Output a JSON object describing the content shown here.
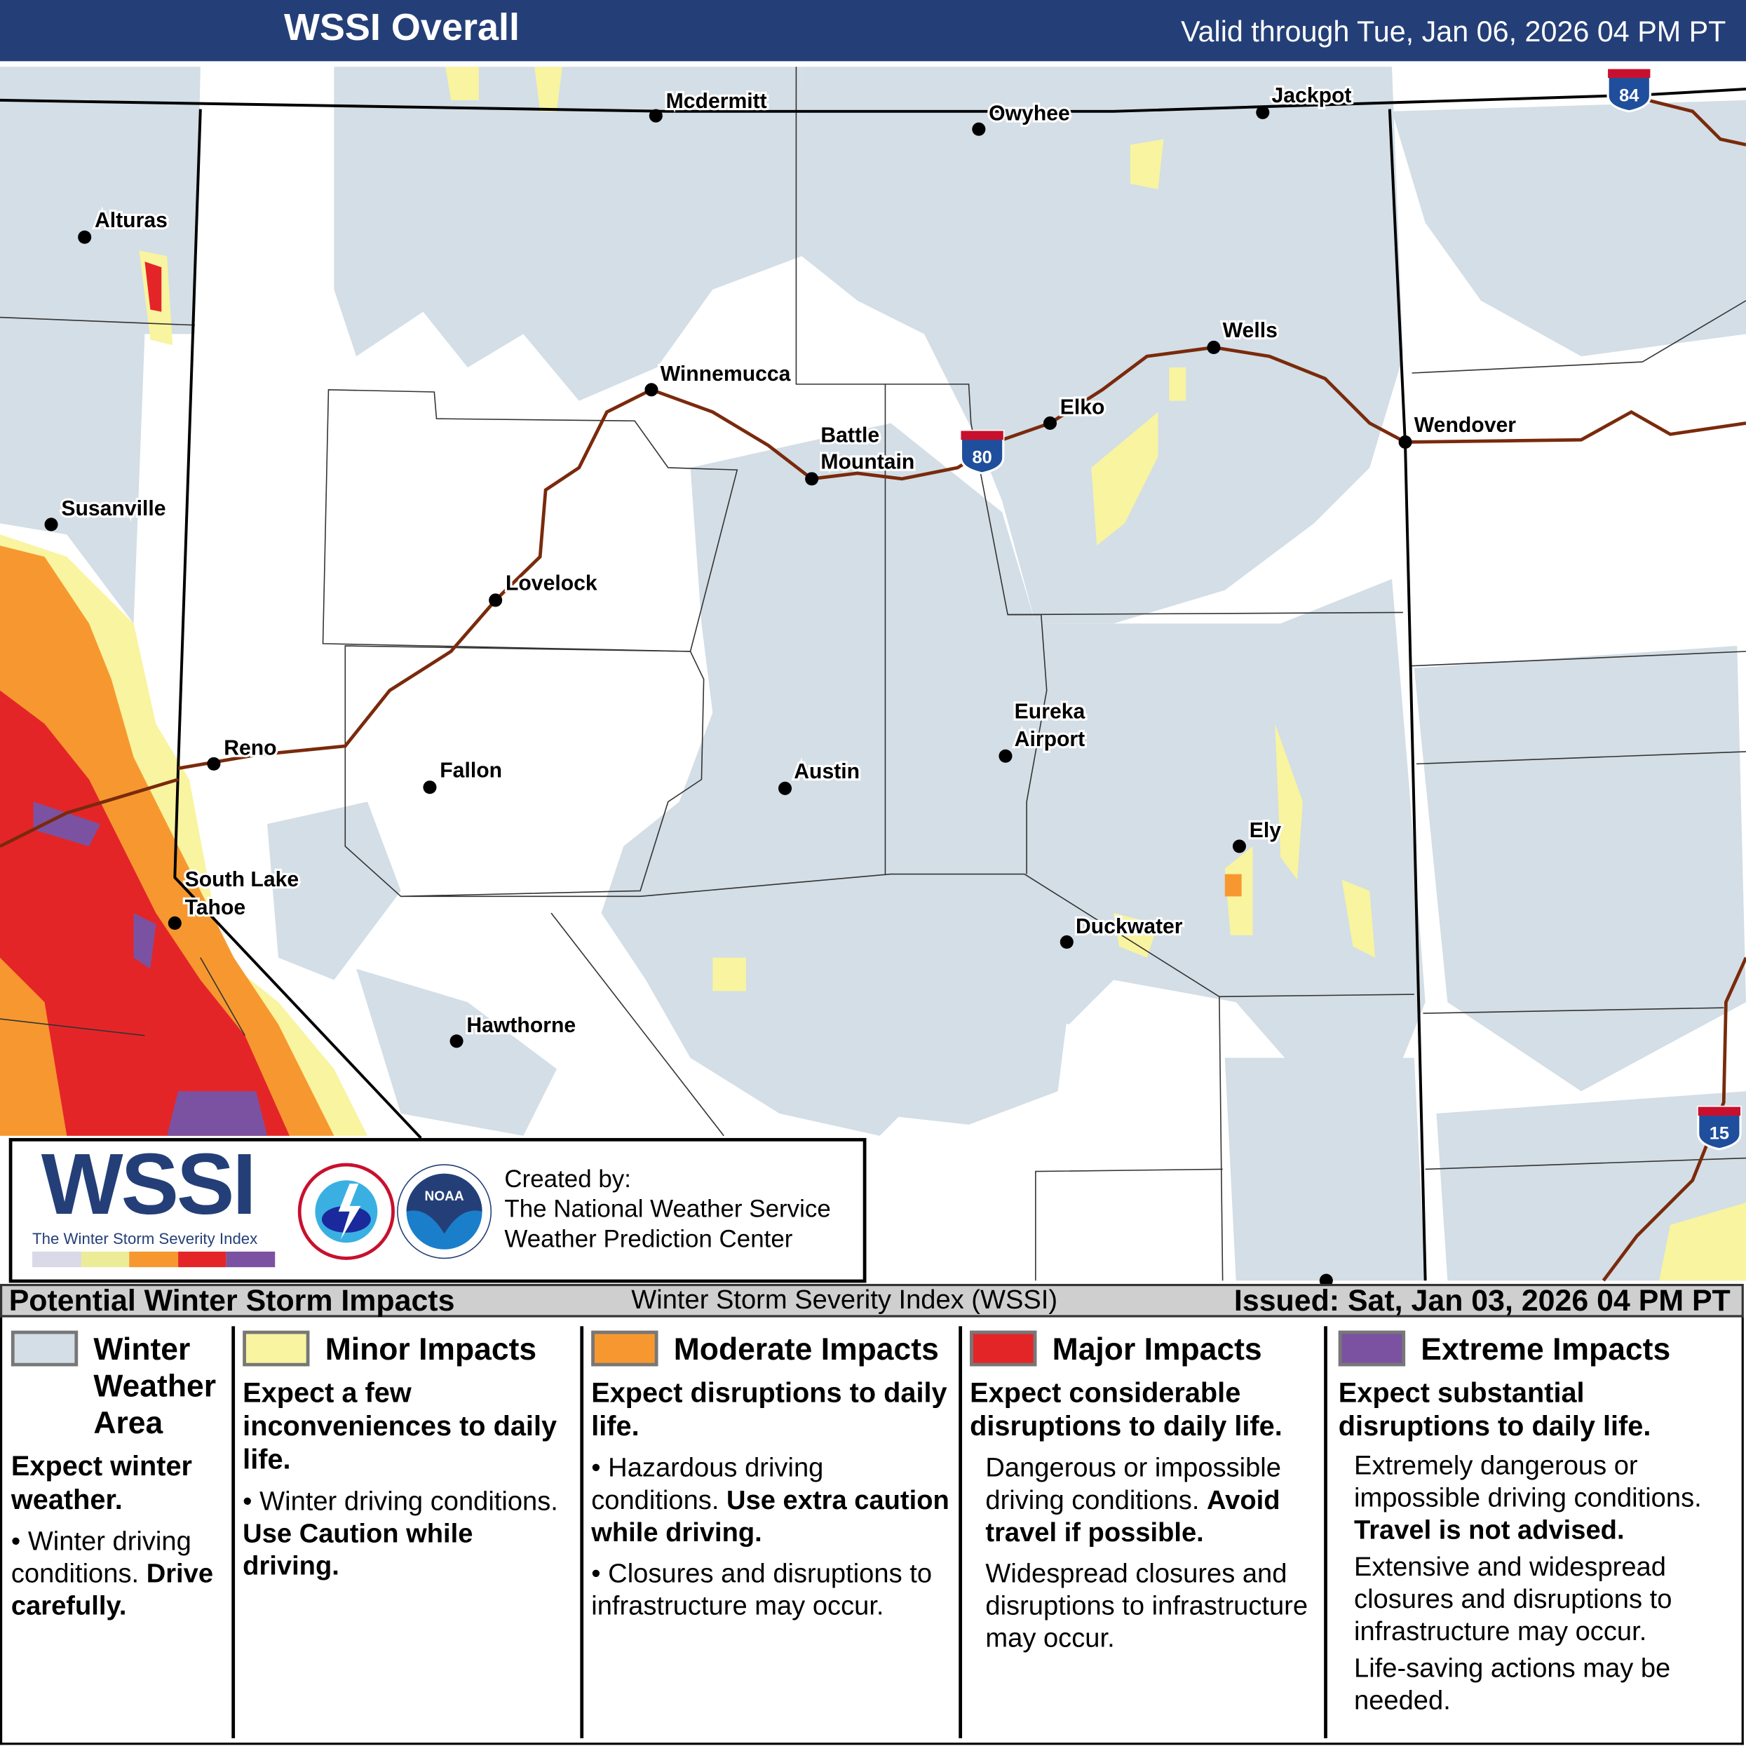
{
  "header": {
    "title": "WSSI Overall",
    "valid": "Valid through Tue, Jan 06, 2026 04 PM PT"
  },
  "map": {
    "cities": [
      "Mcdermitt",
      "Owyhee",
      "Jackpot",
      "Alturas",
      "Winnemucca",
      "Wells",
      "Elko",
      "Battle",
      "Mountain",
      "Wendover",
      "Susanville",
      "Lovelock",
      "Reno",
      "Fallon",
      "Austin",
      "Eureka",
      "Airport",
      "Ely",
      "South Lake",
      "Tahoe",
      "Duckwater",
      "Hawthorne"
    ],
    "shields": [
      "84",
      "80",
      "15"
    ],
    "colors": {
      "winter": "#d3dee6",
      "minor": "#f8f4a0",
      "moderate": "#f6982f",
      "major": "#e42528",
      "extreme": "#7b52a1",
      "road": "#7a2a0c"
    }
  },
  "logo": {
    "wssi": "WSSI",
    "subtitle": "The Winter Storm Severity Index",
    "created_by": "Created by:",
    "org1": "The National Weather Service",
    "org2": "Weather Prediction Center"
  },
  "legend": {
    "title": "Potential Winter Storm Impacts",
    "index_name": "Winter Storm Severity Index (WSSI)",
    "issued": "Issued: Sat, Jan 03, 2026 04 PM PT",
    "cols": [
      {
        "title": "Winter Weather Area",
        "lead": "Expect winter weather.",
        "b1": "Winter driving conditions.",
        "b1bold": "Drive carefully."
      },
      {
        "title": "Minor Impacts",
        "lead": "Expect a few inconveniences to daily life.",
        "b1": "Winter driving conditions.",
        "b1bold": "Use Caution while driving."
      },
      {
        "title": "Moderate Impacts",
        "lead": "Expect disruptions to daily life.",
        "b1": "Hazardous driving conditions.",
        "b1bold": "Use extra caution while driving.",
        "b2": "Closures and disruptions to infrastructure may occur."
      },
      {
        "title": "Major Impacts",
        "lead": "Expect considerable disruptions to daily life.",
        "b1": "Dangerous or impossible driving conditions.",
        "b1bold": "Avoid travel if possible.",
        "b2": "Widespread closures and disruptions to infrastructure may occur."
      },
      {
        "title": "Extreme Impacts",
        "lead": "Expect substantial disruptions to daily life.",
        "b1": "Extremely dangerous or impossible driving conditions.",
        "b1bold": "Travel is not advised.",
        "b2": "Extensive and widespread closures and disruptions to infrastructure may occur.",
        "b3": "Life-saving actions may be needed."
      }
    ]
  }
}
